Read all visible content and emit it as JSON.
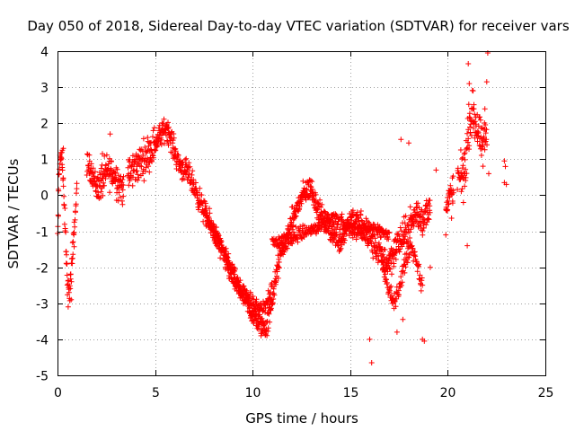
{
  "chart_data": {
    "type": "scatter",
    "title": "Day 050 of 2018, Sidereal Day-to-day VTEC variation (SDTVAR) for receiver vars",
    "xlabel": "GPS time / hours",
    "ylabel": "SDTVAR / TECUs",
    "xlim": [
      0,
      25
    ],
    "ylim": [
      -5,
      4
    ],
    "xticks": [
      "0",
      "5",
      "10",
      "15",
      "20",
      "25"
    ],
    "yticks": [
      "-5",
      "-4",
      "-3",
      "-2",
      "-1",
      "0",
      "1",
      "2",
      "3",
      "4"
    ],
    "grid": true,
    "marker": "+",
    "marker_color": "#ff0000",
    "series": [
      {
        "name": "vars",
        "trace": [
          [
            0.0,
            -1.2
          ],
          [
            0.1,
            0.8
          ],
          [
            0.2,
            1.3
          ],
          [
            0.3,
            0.2
          ],
          [
            0.4,
            -1.0
          ],
          [
            0.5,
            -2.3
          ],
          [
            0.6,
            -2.8
          ],
          [
            0.7,
            -2.2
          ],
          [
            0.8,
            -1.5
          ],
          [
            0.9,
            -0.6
          ],
          [
            1.0,
            0.3
          ],
          [
            1.2,
            0.6
          ],
          [
            1.5,
            0.9
          ],
          [
            1.8,
            0.6
          ],
          [
            2.0,
            0.2
          ],
          [
            2.3,
            0.4
          ],
          [
            2.6,
            0.7
          ],
          [
            3.0,
            0.5
          ],
          [
            3.3,
            0.2
          ],
          [
            3.6,
            0.5
          ],
          [
            4.0,
            0.8
          ],
          [
            4.4,
            1.0
          ],
          [
            4.8,
            1.3
          ],
          [
            5.2,
            1.6
          ],
          [
            5.6,
            1.9
          ],
          [
            5.9,
            1.4
          ],
          [
            6.2,
            0.9
          ],
          [
            6.5,
            0.7
          ],
          [
            6.8,
            0.5
          ],
          [
            7.1,
            0.1
          ],
          [
            7.4,
            -0.3
          ],
          [
            7.7,
            -0.7
          ],
          [
            8.0,
            -1.0
          ],
          [
            8.3,
            -1.4
          ],
          [
            8.6,
            -1.8
          ],
          [
            8.9,
            -2.2
          ],
          [
            9.2,
            -2.5
          ],
          [
            9.5,
            -2.8
          ],
          [
            9.8,
            -3.1
          ],
          [
            10.1,
            -3.4
          ],
          [
            10.4,
            -3.6
          ],
          [
            10.7,
            -3.7
          ],
          [
            10.9,
            -3.2
          ],
          [
            11.1,
            -2.6
          ],
          [
            11.3,
            -2.0
          ],
          [
            11.5,
            -1.5
          ],
          [
            11.8,
            -1.1
          ],
          [
            12.1,
            -0.6
          ],
          [
            12.4,
            -0.2
          ],
          [
            12.7,
            0.1
          ],
          [
            13.0,
            0.2
          ],
          [
            13.3,
            -0.3
          ],
          [
            13.6,
            -0.7
          ],
          [
            13.9,
            -0.9
          ],
          [
            14.2,
            -1.1
          ],
          [
            14.5,
            -1.3
          ],
          [
            14.8,
            -0.9
          ],
          [
            15.1,
            -0.6
          ],
          [
            15.4,
            -0.8
          ],
          [
            15.7,
            -1.0
          ],
          [
            16.0,
            -1.2
          ],
          [
            16.3,
            -1.4
          ],
          [
            16.6,
            -1.7
          ],
          [
            16.9,
            -1.9
          ],
          [
            17.2,
            -1.6
          ],
          [
            17.5,
            -1.3
          ],
          [
            17.8,
            -1.1
          ],
          [
            18.1,
            -0.8
          ],
          [
            18.4,
            -0.5
          ],
          [
            18.7,
            -0.7
          ],
          [
            19.0,
            -0.4
          ],
          [
            20.0,
            -0.2
          ],
          [
            20.3,
            0.1
          ],
          [
            20.6,
            0.5
          ],
          [
            20.9,
            0.8
          ],
          [
            21.1,
            2.0
          ],
          [
            21.3,
            2.3
          ],
          [
            21.6,
            1.6
          ],
          [
            21.8,
            1.3
          ],
          [
            22.0,
            1.8
          ]
        ],
        "branches": [
          {
            "trace": [
              [
                7.6,
                -0.5
              ],
              [
                8.2,
                -1.2
              ],
              [
                8.8,
                -1.9
              ],
              [
                9.4,
                -2.6
              ],
              [
                10.0,
                -3.0
              ],
              [
                10.6,
                -3.1
              ],
              [
                11.0,
                -2.5
              ]
            ],
            "spread": 0.18
          },
          {
            "trace": [
              [
                11.0,
                -1.3
              ],
              [
                11.6,
                -1.3
              ],
              [
                12.2,
                -1.1
              ],
              [
                12.8,
                -1.0
              ],
              [
                13.4,
                -0.9
              ],
              [
                14.0,
                -0.6
              ],
              [
                14.6,
                -0.8
              ],
              [
                15.2,
                -1.0
              ],
              [
                15.8,
                -0.9
              ],
              [
                16.4,
                -1.0
              ],
              [
                17.0,
                -1.1
              ]
            ],
            "spread": 0.18
          },
          {
            "trace": [
              [
                16.6,
                -1.8
              ],
              [
                16.9,
                -2.5
              ],
              [
                17.2,
                -3.0
              ],
              [
                17.5,
                -2.6
              ],
              [
                17.8,
                -1.9
              ],
              [
                18.1,
                -1.4
              ],
              [
                18.4,
                -1.8
              ],
              [
                18.7,
                -2.6
              ]
            ],
            "spread": 0.2
          }
        ],
        "outliers": [
          [
            0.25,
            1.25
          ],
          [
            0.3,
            1.3
          ],
          [
            0.55,
            -3.1
          ],
          [
            0.7,
            -2.9
          ],
          [
            2.3,
            1.15
          ],
          [
            2.7,
            1.7
          ],
          [
            16.0,
            -4.0
          ],
          [
            16.1,
            -4.65
          ],
          [
            17.4,
            -3.8
          ],
          [
            17.7,
            -3.45
          ],
          [
            17.6,
            1.55
          ],
          [
            18.0,
            1.45
          ],
          [
            18.7,
            -4.0
          ],
          [
            18.8,
            -4.05
          ],
          [
            19.1,
            -2.0
          ],
          [
            19.4,
            0.7
          ],
          [
            19.9,
            -1.1
          ],
          [
            20.8,
            -0.2
          ],
          [
            21.0,
            -1.4
          ],
          [
            21.05,
            3.65
          ],
          [
            21.1,
            3.1
          ],
          [
            21.3,
            2.9
          ],
          [
            21.9,
            2.4
          ],
          [
            22.05,
            3.95
          ],
          [
            22.0,
            3.15
          ],
          [
            22.9,
            0.95
          ],
          [
            22.9,
            0.35
          ],
          [
            23.0,
            0.3
          ],
          [
            22.95,
            0.8
          ],
          [
            22.1,
            0.6
          ]
        ]
      }
    ]
  }
}
